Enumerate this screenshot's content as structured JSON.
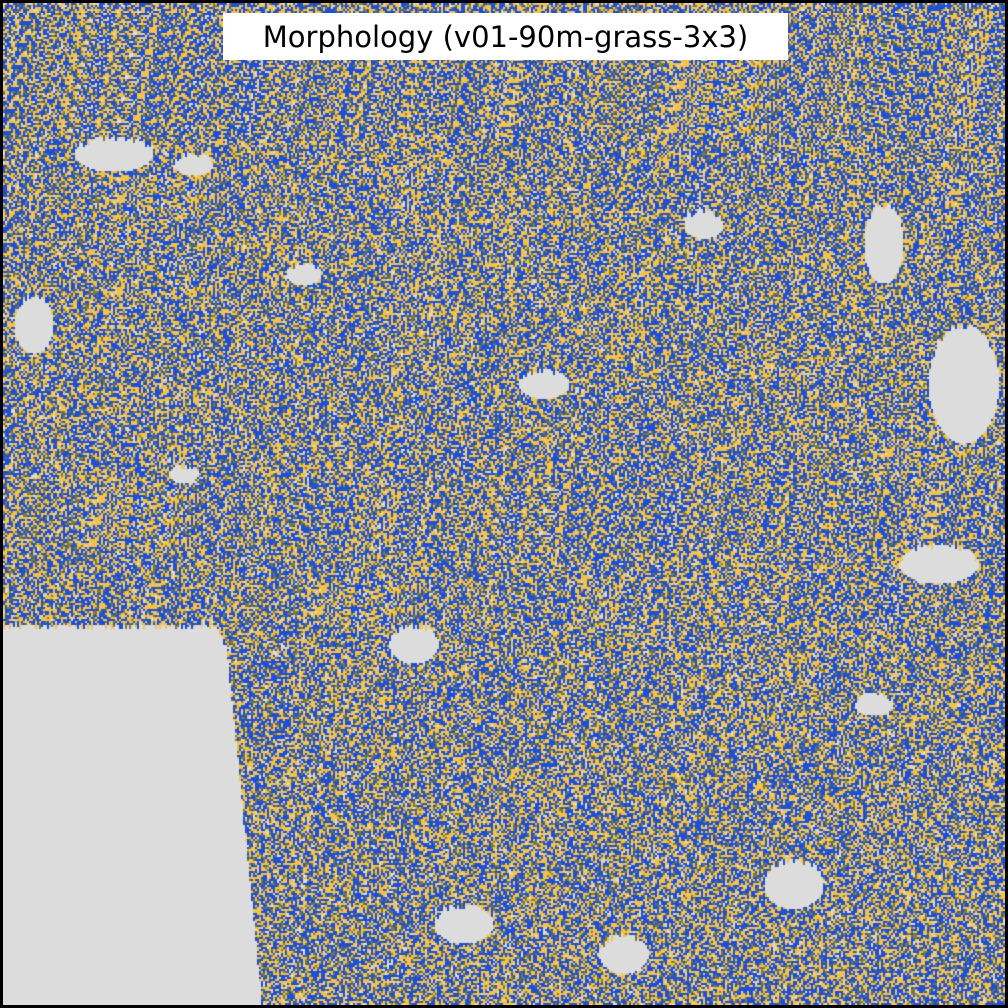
{
  "map": {
    "title": "Morphology (v01-90m-grass-3x3)",
    "colors": {
      "background": "#dcdcdc",
      "class_blue": "#1d4fd8",
      "class_yellow": "#f2c24a",
      "class_olive": "#7a7a3a",
      "border": "#000000"
    }
  }
}
